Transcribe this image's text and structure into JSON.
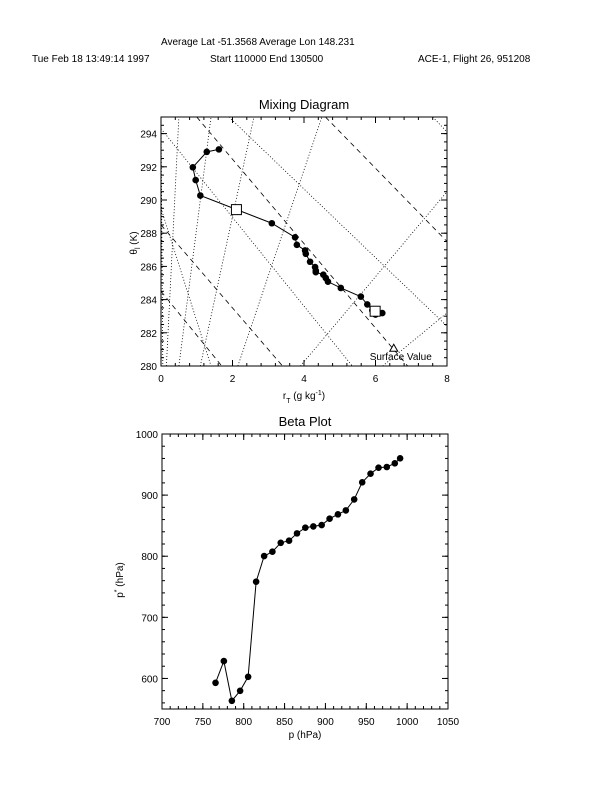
{
  "header": {
    "average_line": "Average Lat  -51.3568  Average Lon  148.231",
    "date": "Tue Feb 18 13:49:14 1997",
    "time_range": "Start  110000  End  130500",
    "flight": "ACE-1, Flight 26, 951208"
  },
  "chart_data": [
    {
      "type": "line",
      "title": "Mixing Diagram",
      "xlabel": "r",
      "xlabel_sub": "T",
      "xlabel_unit": " (g kg",
      "xlabel_sup": "-1",
      "xlabel_end": ")",
      "ylabel": "θ",
      "ylabel_sub": "l",
      "ylabel_unit": " (K)",
      "xlim": [
        0,
        8
      ],
      "ylim": [
        280,
        295
      ],
      "xticks": [
        "0",
        "2",
        "4",
        "6",
        "8"
      ],
      "yticks": [
        "280",
        "282",
        "284",
        "286",
        "288",
        "290",
        "292",
        "294"
      ],
      "series": [
        {
          "name": "profile",
          "marker": "circle",
          "x": [
            1.62,
            1.28,
            0.89,
            0.97,
            1.1,
            3.1,
            3.75,
            3.8,
            4.03,
            4.05,
            4.17,
            4.31,
            4.33,
            4.33,
            4.54,
            4.61,
            4.67,
            5.03,
            5.59,
            5.77,
            5.91,
            6.0,
            6.19
          ],
          "y": [
            293.05,
            292.9,
            291.97,
            291.2,
            290.27,
            288.6,
            287.75,
            287.3,
            286.96,
            286.76,
            286.28,
            285.96,
            285.74,
            285.65,
            285.5,
            285.3,
            285.08,
            284.7,
            284.18,
            283.71,
            283.35,
            283.1,
            283.19
          ]
        }
      ],
      "mean_markers": [
        {
          "x": 2.11,
          "y": 289.42
        },
        {
          "x": 5.99,
          "y": 283.3
        }
      ],
      "surface": {
        "label": "Surface Value",
        "x": 6.51,
        "y": 281.07
      },
      "reference_lines": {
        "dashed": [
          [
            [
              1.0,
              295
            ],
            [
              6.9,
              280
            ]
          ],
          [
            [
              0,
              288.5
            ],
            [
              3.4,
              280
            ]
          ],
          [
            [
              0,
              284.5
            ],
            [
              1.7,
              280
            ]
          ],
          [
            [
              4.6,
              295
            ],
            [
              8,
              287.5
            ]
          ],
          [
            [
              0.1,
              295
            ],
            [
              0.2,
              295
            ]
          ]
        ],
        "dotted": [
          [
            [
              0.15,
              280
            ],
            [
              0.5,
              295
            ]
          ],
          [
            [
              0.5,
              280
            ],
            [
              1.4,
              295
            ]
          ],
          [
            [
              1.1,
              280
            ],
            [
              2.6,
              295
            ]
          ],
          [
            [
              0,
              295
            ],
            [
              0.05,
              280
            ]
          ],
          [
            [
              0,
              294.3
            ],
            [
              5.35,
              280
            ]
          ],
          [
            [
              1.9,
              295
            ],
            [
              8,
              282.4
            ]
          ],
          [
            [
              2.15,
              280
            ],
            [
              4.5,
              295
            ]
          ],
          [
            [
              3.9,
              280
            ],
            [
              8,
              290.5
            ]
          ],
          [
            [
              6.2,
              280
            ],
            [
              8,
              283.2
            ]
          ],
          [
            [
              0,
              289.5
            ],
            [
              1.4,
              280
            ]
          ],
          [
            [
              7.6,
              295
            ],
            [
              8,
              294.1
            ]
          ]
        ]
      }
    },
    {
      "type": "line",
      "title": "Beta Plot",
      "xlabel": "p (hPa)",
      "ylabel": "p",
      "ylabel_sup": "*",
      "ylabel_unit": " (hPa)",
      "xlim": [
        700,
        1050
      ],
      "ylim": [
        550,
        1000
      ],
      "xticks": [
        "700",
        "750",
        "800",
        "850",
        "900",
        "950",
        "1000",
        "1050"
      ],
      "yticks": [
        "600",
        "700",
        "800",
        "900",
        "1000"
      ],
      "series": [
        {
          "name": "beta",
          "x": [
            765.5,
            775.7,
            785.5,
            795.6,
            805.4,
            815.2,
            825,
            835.1,
            845.3,
            855.5,
            865.2,
            875.4,
            885.2,
            895.4,
            905.1,
            915.3,
            925,
            935.2,
            945,
            955.2,
            965,
            975.1,
            984.9,
            991.4
          ],
          "y": [
            592.9,
            628.4,
            563.4,
            579.8,
            602.7,
            758.3,
            800.3,
            807.4,
            822,
            825.4,
            837.4,
            846.7,
            848.8,
            851,
            861.4,
            868.5,
            875,
            893,
            920.9,
            935,
            944.9,
            946,
            952,
            960.2
          ]
        }
      ]
    }
  ]
}
